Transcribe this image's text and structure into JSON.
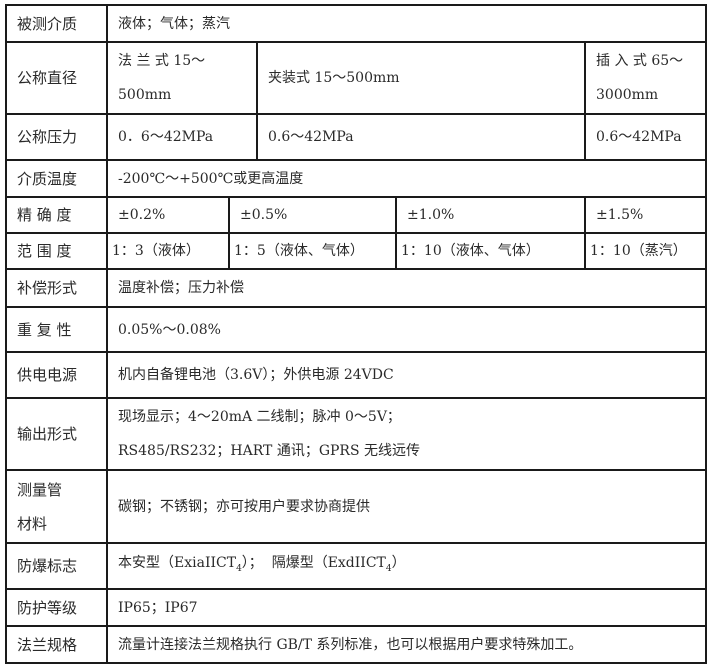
{
  "rows": {
    "medium": {
      "label": "被测介质",
      "value": "液体；气体；蒸汽"
    },
    "diameter": {
      "label": "公称直径",
      "flange": "法 兰 式 15～500mm",
      "clamp": "夹装式 15～500mm",
      "insert": "插 入 式 65～3000mm"
    },
    "pressure": {
      "label": "公称压力",
      "flange": "0．6～42MPa",
      "clamp": "0.6～42MPa",
      "insert": "0.6～42MPa"
    },
    "temperature": {
      "label": "介质温度",
      "value": "-200℃～+500℃或更高温度"
    },
    "accuracy": {
      "label": "精 确 度",
      "values": [
        "±0.2%",
        "±0.5%",
        "±1.0%",
        "±1.5%"
      ]
    },
    "range": {
      "label": "范 围 度",
      "values": [
        "1：3（液体）",
        "1：5（液体、气体）",
        "1：10（液体、气体）",
        "1：10（蒸汽）"
      ]
    },
    "compensation": {
      "label": "补偿形式",
      "value": "温度补偿；压力补偿"
    },
    "repeatability": {
      "label": "重 复 性",
      "value": "0.05%～0.08%"
    },
    "power": {
      "label": "供电电源",
      "value": "机内自备锂电池（3.6V）；外供电源 24VDC"
    },
    "output": {
      "label": "输出形式",
      "line1": "现场显示；4～20mA 二线制；脉冲 0～5V；",
      "line2": "RS485/RS232；HART 通讯；GPRS 无线远传"
    },
    "material": {
      "label": "测量管材料",
      "value": "碳钢；不锈钢；亦可按用户要求协商提供"
    },
    "explosion": {
      "label": "防爆标志",
      "part1": "本安型（ExiaIICT",
      "sub1": "4",
      "part2": "）；  隔爆型（ExdIICT",
      "sub2": "4",
      "part3": "）"
    },
    "protection": {
      "label": "防护等级",
      "value": "IP65；IP67"
    },
    "flange": {
      "label": "法兰规格",
      "value": "流量计连接法兰规格执行 GB/T 系列标准，也可以根据用户要求特殊加工。"
    }
  }
}
